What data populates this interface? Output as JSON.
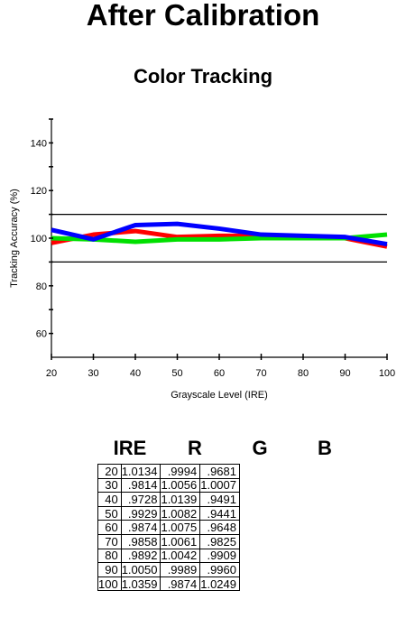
{
  "page": {
    "title": "After Calibration"
  },
  "chart_data": {
    "type": "line",
    "title": "Color Tracking",
    "xlabel": "Grayscale Level (IRE)",
    "ylabel": "Tracking Accuracy (%)",
    "x": [
      20,
      30,
      40,
      50,
      60,
      70,
      80,
      90,
      100
    ],
    "xlim": [
      20,
      100
    ],
    "ylim": [
      50,
      150
    ],
    "xticks": [
      "20",
      "30",
      "40",
      "50",
      "60",
      "70",
      "80",
      "90",
      "100"
    ],
    "yticks": [
      "60",
      "80",
      "100",
      "120",
      "140"
    ],
    "reference_lines": [
      90,
      110
    ],
    "grid": false,
    "series": [
      {
        "color": "#ff0000",
        "values": [
          98,
          101.5,
          103,
          100.5,
          101,
          101,
          100,
          100,
          96.5
        ]
      },
      {
        "color": "#00e000",
        "values": [
          100,
          99.5,
          98.5,
          99.5,
          99.5,
          100,
          100,
          100,
          101.5
        ]
      },
      {
        "color": "#0000ff",
        "values": [
          103.5,
          99.5,
          105.5,
          106,
          104,
          101.5,
          101,
          100.5,
          97.5
        ]
      }
    ]
  },
  "table": {
    "headers": [
      "IRE",
      "R",
      "G",
      "B"
    ],
    "rows": [
      [
        "20",
        "1.0134",
        ".9994",
        ".9681"
      ],
      [
        "30",
        ".9814",
        "1.0056",
        "1.0007"
      ],
      [
        "40",
        ".9728",
        "1.0139",
        ".9491"
      ],
      [
        "50",
        ".9929",
        "1.0082",
        ".9441"
      ],
      [
        "60",
        ".9874",
        "1.0075",
        ".9648"
      ],
      [
        "70",
        ".9858",
        "1.0061",
        ".9825"
      ],
      [
        "80",
        ".9892",
        "1.0042",
        ".9909"
      ],
      [
        "90",
        "1.0050",
        ".9989",
        ".9960"
      ],
      [
        "100",
        "1.0359",
        ".9874",
        "1.0249"
      ]
    ]
  }
}
